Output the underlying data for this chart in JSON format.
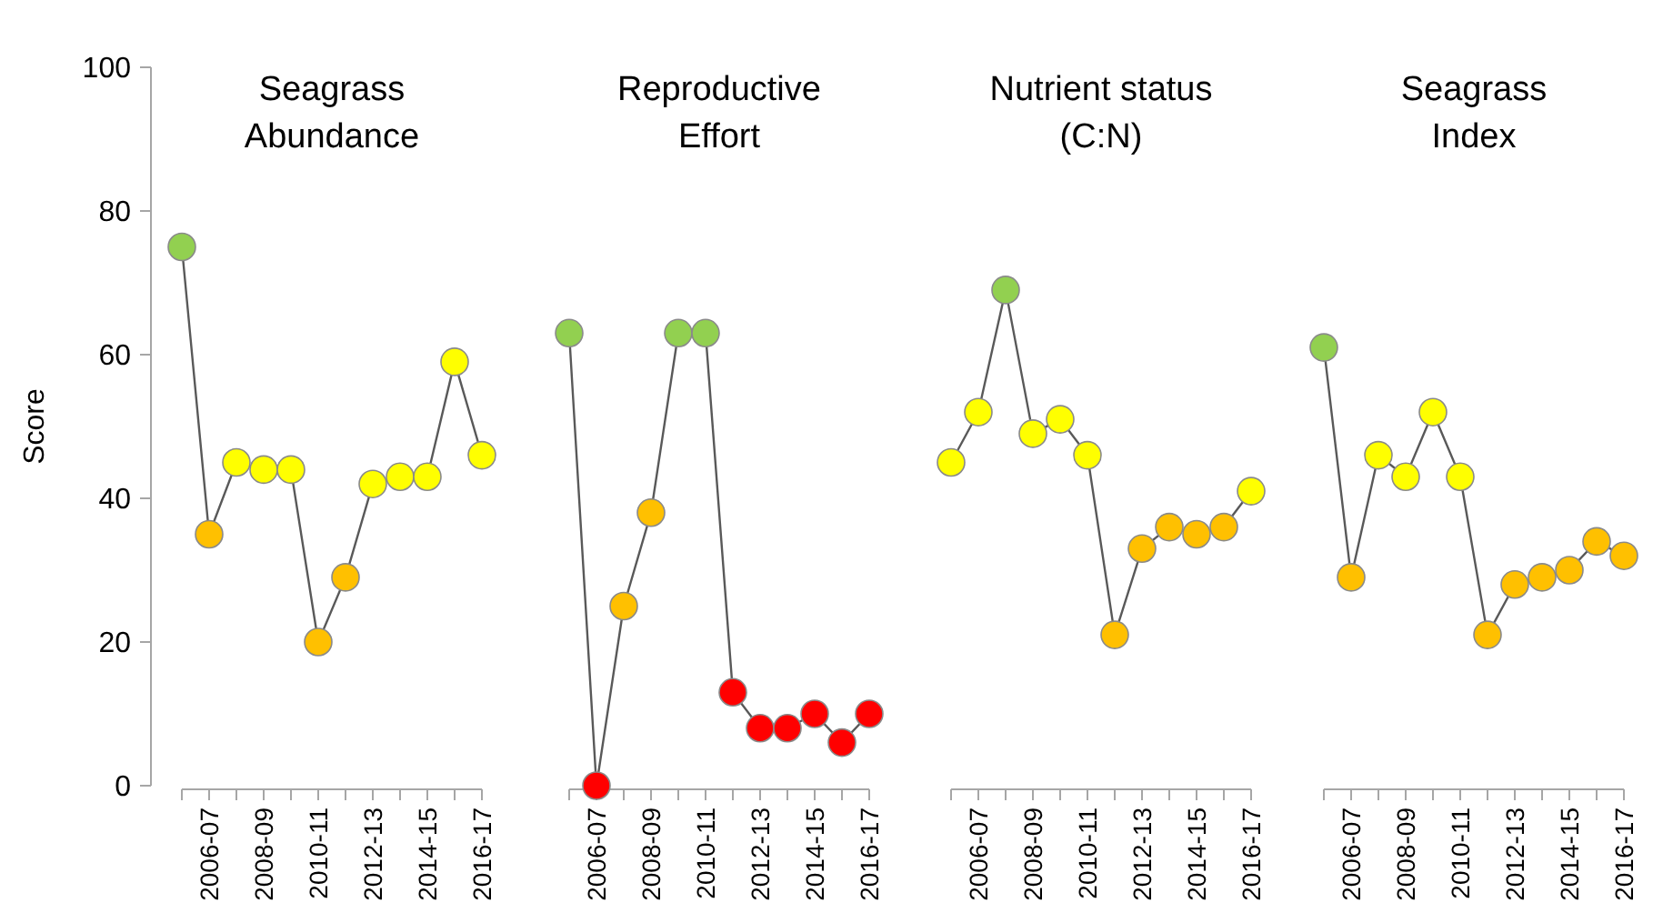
{
  "chart_data": [
    {
      "type": "line",
      "title": "Seagrass\nAbundance",
      "ylabel": "Score",
      "categories": [
        null,
        "2006-07",
        null,
        "2008-09",
        null,
        "2010-11",
        null,
        "2012-13",
        null,
        "2014-15",
        null,
        "2016-17"
      ],
      "values": [
        75,
        35,
        45,
        44,
        44,
        20,
        29,
        42,
        43,
        43,
        59,
        46
      ],
      "color": "#595959",
      "colors": [
        "#92d050",
        "#ffc000",
        "#ffff00",
        "#ffff00",
        "#ffff00",
        "#ffc000",
        "#ffc000",
        "#ffff00",
        "#ffff00",
        "#ffff00",
        "#ffff00",
        "#ffff00"
      ],
      "ylim": [
        0,
        100
      ],
      "yticks": [
        0,
        20,
        40,
        60,
        80,
        100
      ],
      "marker": "circle"
    },
    {
      "type": "line",
      "title": "Reproductive\nEffort",
      "categories": [
        null,
        "2006-07",
        null,
        "2008-09",
        null,
        "2010-11",
        null,
        "2012-13",
        null,
        "2014-15",
        null,
        "2016-17"
      ],
      "values": [
        63,
        0,
        25,
        38,
        63,
        63,
        13,
        8,
        8,
        10,
        6,
        10
      ],
      "color": "#595959",
      "colors": [
        "#92d050",
        "#ff0000",
        "#ffc000",
        "#ffc000",
        "#92d050",
        "#92d050",
        "#ff0000",
        "#ff0000",
        "#ff0000",
        "#ff0000",
        "#ff0000",
        "#ff0000"
      ],
      "ylim": [
        0,
        100
      ],
      "tick_labels": "x",
      "marker": "circle"
    },
    {
      "type": "line",
      "title": "Nutrient status\n(C:N)",
      "categories": [
        null,
        "2006-07",
        null,
        "2008-09",
        null,
        "2010-11",
        null,
        "2012-13",
        null,
        "2014-15",
        null,
        "2016-17"
      ],
      "values": [
        45,
        52,
        69,
        49,
        51,
        46,
        21,
        33,
        36,
        35,
        36,
        41
      ],
      "color": "#595959",
      "colors": [
        "#ffff00",
        "#ffff00",
        "#92d050",
        "#ffff00",
        "#ffff00",
        "#ffff00",
        "#ffc000",
        "#ffc000",
        "#ffc000",
        "#ffc000",
        "#ffc000",
        "#ffff00"
      ],
      "ylim": [
        0,
        100
      ],
      "tick_labels": "x",
      "marker": "circle"
    },
    {
      "type": "line",
      "title": "Seagrass\nIndex",
      "categories": [
        null,
        "2006-07",
        null,
        "2008-09",
        null,
        "2010-11",
        null,
        "2012-13",
        null,
        "2014-15",
        null,
        "2016-17"
      ],
      "values": [
        61,
        29,
        46,
        43,
        52,
        43,
        21,
        28,
        29,
        30,
        34,
        32
      ],
      "color": "#595959",
      "colors": [
        "#92d050",
        "#ffc000",
        "#ffff00",
        "#ffff00",
        "#ffff00",
        "#ffff00",
        "#ffc000",
        "#ffc000",
        "#ffc000",
        "#ffc000",
        "#ffc000",
        "#ffc000"
      ],
      "ylim": [
        0,
        100
      ],
      "tick_labels": "x",
      "marker": "circle"
    }
  ]
}
